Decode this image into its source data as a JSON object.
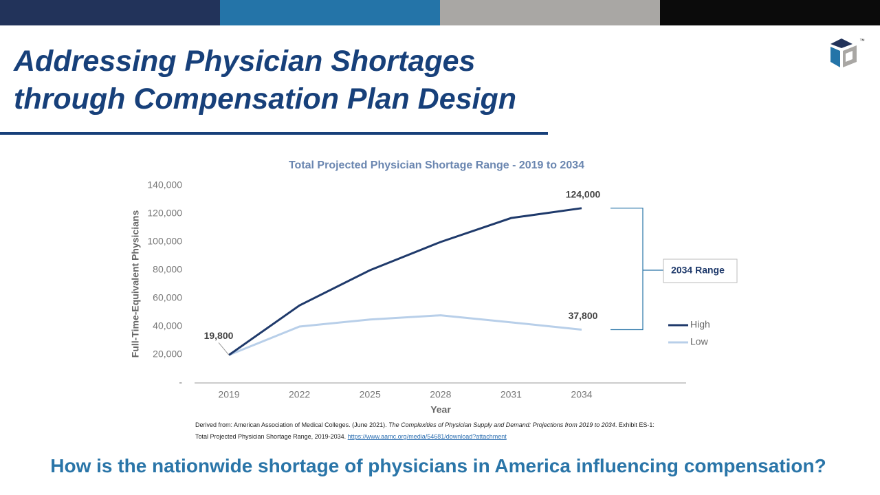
{
  "header": {
    "title_lines": [
      "Addressing Physician Shortages",
      "through Compensation Plan Design"
    ],
    "logo_mark": "™"
  },
  "chart_data": {
    "type": "line",
    "title": "Total Projected Physician Shortage Range - 2019 to 2034",
    "x_label": "Year",
    "y_label": "Full-Time-Equivalent Physicians",
    "categories": [
      "2019",
      "2022",
      "2025",
      "2028",
      "2031",
      "2034"
    ],
    "series": [
      {
        "name": "High",
        "color": "#1f3a6b",
        "values": [
          19800,
          55000,
          80000,
          100000,
          117000,
          124000
        ],
        "value_labels": [
          "19,800",
          null,
          null,
          null,
          null,
          "124,000"
        ]
      },
      {
        "name": "Low",
        "color": "#b8cfe9",
        "values": [
          19800,
          40000,
          45000,
          48000,
          43000,
          37800
        ],
        "value_labels": [
          null,
          null,
          null,
          null,
          null,
          "37,800"
        ]
      }
    ],
    "ylim": [
      0,
      140000
    ],
    "yticks": [
      {
        "value": 0,
        "label": "-"
      },
      {
        "value": 20000,
        "label": "20,000"
      },
      {
        "value": 40000,
        "label": "40,000"
      },
      {
        "value": 60000,
        "label": "60,000"
      },
      {
        "value": 80000,
        "label": "80,000"
      },
      {
        "value": 100000,
        "label": "100,000"
      },
      {
        "value": 120000,
        "label": "120,000"
      },
      {
        "value": 140000,
        "label": "140,000"
      }
    ],
    "annotation": "2034 Range",
    "legend": "right"
  },
  "source": {
    "prefix": "Derived from: American Association of Medical Colleges. (June 2021). ",
    "work": "The Complexities of Physician Supply and Demand: Projections from 2019 to 2034",
    "detail": ". Exhibit ES-1: Total Projected Physician Shortage Range, 2019-2034. ",
    "link": "https://www.aamc.org/media/54681/download?attachment"
  },
  "question": "How is the nationwide shortage of physicians in America influencing compensation?"
}
